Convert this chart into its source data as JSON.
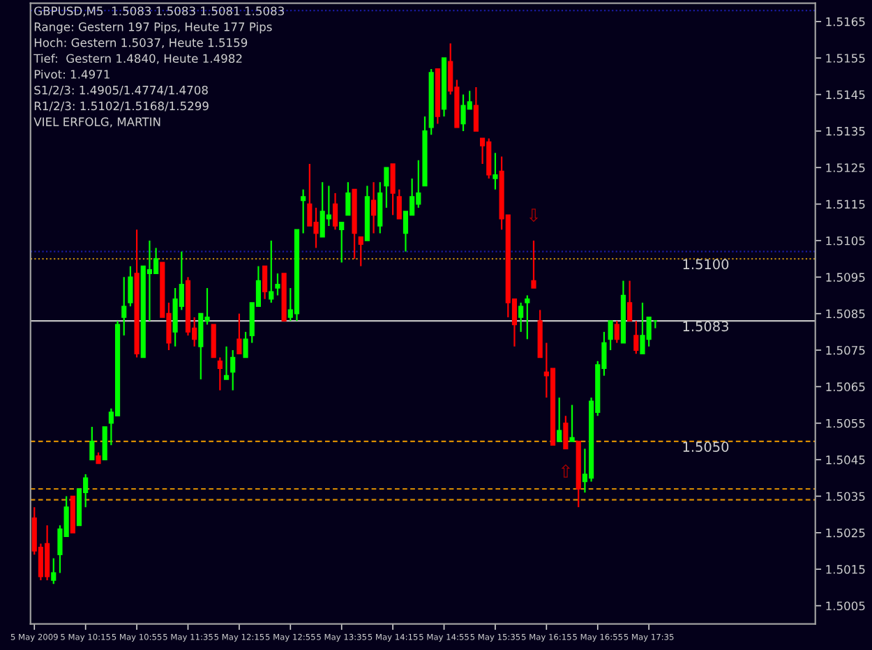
{
  "chart_data": {
    "type": "candlestick",
    "title": "GBPUSD,M5  1.5083 1.5083 1.5081 1.5083",
    "annotations": [
      "Range: Gestern 197 Pips, Heute 177 Pips",
      "Hoch: Gestern 1.5037, Heute 1.5159",
      "Tief:  Gestern 1.4840, Heute 1.4982",
      "Pivot: 1.4971",
      "S1/2/3: 1.4905/1.4774/1.4708",
      "R1/2/3: 1.5102/1.5168/1.5299",
      "VIEL ERFOLG, MARTIN",
      {
        "text": "⇩",
        "x": "2009-05-05T16:05",
        "y": 1.5105
      },
      {
        "text": "⇧",
        "x": "2009-05-05T16:30",
        "y": 1.5048
      }
    ],
    "x": [
      "2009-05-05T09:35",
      "2009-05-05T09:40",
      "2009-05-05T09:45",
      "2009-05-05T09:50",
      "2009-05-05T09:55",
      "2009-05-05T10:00",
      "2009-05-05T10:05",
      "2009-05-05T10:10",
      "2009-05-05T10:15",
      "2009-05-05T10:20",
      "2009-05-05T10:25",
      "2009-05-05T10:30",
      "2009-05-05T10:35",
      "2009-05-05T10:40",
      "2009-05-05T10:45",
      "2009-05-05T10:50",
      "2009-05-05T10:55",
      "2009-05-05T11:00",
      "2009-05-05T11:05",
      "2009-05-05T11:10",
      "2009-05-05T11:15",
      "2009-05-05T11:20",
      "2009-05-05T11:25",
      "2009-05-05T11:30",
      "2009-05-05T11:35",
      "2009-05-05T11:40",
      "2009-05-05T11:45",
      "2009-05-05T11:50",
      "2009-05-05T11:55",
      "2009-05-05T12:00",
      "2009-05-05T12:05",
      "2009-05-05T12:10",
      "2009-05-05T12:15",
      "2009-05-05T12:20",
      "2009-05-05T12:25",
      "2009-05-05T12:30",
      "2009-05-05T12:35",
      "2009-05-05T12:40",
      "2009-05-05T12:45",
      "2009-05-05T12:50",
      "2009-05-05T12:55",
      "2009-05-05T13:00",
      "2009-05-05T13:05",
      "2009-05-05T13:10",
      "2009-05-05T13:15",
      "2009-05-05T13:20",
      "2009-05-05T13:25",
      "2009-05-05T13:30",
      "2009-05-05T13:35",
      "2009-05-05T13:40",
      "2009-05-05T13:45",
      "2009-05-05T13:50",
      "2009-05-05T13:55",
      "2009-05-05T14:00",
      "2009-05-05T14:05",
      "2009-05-05T14:10",
      "2009-05-05T14:15",
      "2009-05-05T14:20",
      "2009-05-05T14:25",
      "2009-05-05T14:30",
      "2009-05-05T14:35",
      "2009-05-05T14:40",
      "2009-05-05T14:45",
      "2009-05-05T14:50",
      "2009-05-05T14:55",
      "2009-05-05T15:00",
      "2009-05-05T15:05",
      "2009-05-05T15:10",
      "2009-05-05T15:15",
      "2009-05-05T15:20",
      "2009-05-05T15:25",
      "2009-05-05T15:30",
      "2009-05-05T15:35",
      "2009-05-05T15:40",
      "2009-05-05T15:45",
      "2009-05-05T15:50",
      "2009-05-05T15:55",
      "2009-05-05T16:00",
      "2009-05-05T16:05",
      "2009-05-05T16:10",
      "2009-05-05T16:15",
      "2009-05-05T16:20",
      "2009-05-05T16:25",
      "2009-05-05T16:30",
      "2009-05-05T16:35",
      "2009-05-05T16:40",
      "2009-05-05T16:45",
      "2009-05-05T16:50",
      "2009-05-05T16:55",
      "2009-05-05T17:00",
      "2009-05-05T17:05",
      "2009-05-05T17:10",
      "2009-05-05T17:15",
      "2009-05-05T17:20",
      "2009-05-05T17:25",
      "2009-05-05T17:30",
      "2009-05-05T17:35",
      "2009-05-05T17:40"
    ],
    "ohlc": [
      [
        1.5029,
        1.5032,
        1.5019,
        1.502
      ],
      [
        1.5021,
        1.5022,
        1.5012,
        1.5013
      ],
      [
        1.5022,
        1.5027,
        1.5012,
        1.5013
      ],
      [
        1.5012,
        1.5018,
        1.5011,
        1.5014
      ],
      [
        1.5019,
        1.5027,
        1.5014,
        1.5026
      ],
      [
        1.5024,
        1.5035,
        1.5024,
        1.5032
      ],
      [
        1.5035,
        1.5035,
        1.5025,
        1.5025
      ],
      [
        1.5027,
        1.5037,
        1.5027,
        1.5037
      ],
      [
        1.5036,
        1.5041,
        1.5032,
        1.504
      ],
      [
        1.5045,
        1.5054,
        1.5045,
        1.505
      ],
      [
        1.5046,
        1.5047,
        1.5044,
        1.5044
      ],
      [
        1.5045,
        1.5054,
        1.5045,
        1.5054
      ],
      [
        1.5055,
        1.5059,
        1.5049,
        1.5058
      ],
      [
        1.5057,
        1.5083,
        1.5057,
        1.5082
      ],
      [
        1.5084,
        1.5095,
        1.5079,
        1.5087
      ],
      [
        1.5088,
        1.5098,
        1.5087,
        1.5095
      ],
      [
        1.5096,
        1.5108,
        1.5073,
        1.5074
      ],
      [
        1.5073,
        1.5098,
        1.5073,
        1.5098
      ],
      [
        1.5096,
        1.5105,
        1.5083,
        1.5097
      ],
      [
        1.5096,
        1.5103,
        1.5096,
        1.51
      ],
      [
        1.5099,
        1.5099,
        1.5084,
        1.5084
      ],
      [
        1.5085,
        1.5088,
        1.5075,
        1.5077
      ],
      [
        1.508,
        1.5092,
        1.5076,
        1.5089
      ],
      [
        1.5087,
        1.5102,
        1.5086,
        1.5093
      ],
      [
        1.5094,
        1.5095,
        1.5079,
        1.508
      ],
      [
        1.5081,
        1.5084,
        1.5076,
        1.5078
      ],
      [
        1.5076,
        1.5085,
        1.5067,
        1.5085
      ],
      [
        1.5083,
        1.5092,
        1.5082,
        1.5084
      ],
      [
        1.5082,
        1.5082,
        1.5073,
        1.5073
      ],
      [
        1.5072,
        1.5073,
        1.5064,
        1.507
      ],
      [
        1.5067,
        1.5076,
        1.5067,
        1.5068
      ],
      [
        1.5069,
        1.5075,
        1.5064,
        1.5073
      ],
      [
        1.5078,
        1.5085,
        1.5074,
        1.5074
      ],
      [
        1.5073,
        1.508,
        1.5073,
        1.5078
      ],
      [
        1.5079,
        1.5088,
        1.5077,
        1.5088
      ],
      [
        1.5087,
        1.5098,
        1.5087,
        1.5094
      ],
      [
        1.5098,
        1.5098,
        1.5089,
        1.5091
      ],
      [
        1.5089,
        1.5105,
        1.5088,
        1.5091
      ],
      [
        1.5092,
        1.5096,
        1.509,
        1.5093
      ],
      [
        1.5096,
        1.5096,
        1.5083,
        1.5083
      ],
      [
        1.5084,
        1.5092,
        1.5083,
        1.5086
      ],
      [
        1.5085,
        1.5108,
        1.5083,
        1.5108
      ],
      [
        1.5116,
        1.5119,
        1.5107,
        1.5117
      ],
      [
        1.5115,
        1.5126,
        1.5109,
        1.5109
      ],
      [
        1.511,
        1.5114,
        1.5103,
        1.5107
      ],
      [
        1.5106,
        1.5121,
        1.5106,
        1.5113
      ],
      [
        1.5111,
        1.512,
        1.5109,
        1.5112
      ],
      [
        1.5115,
        1.5118,
        1.5108,
        1.5109
      ],
      [
        1.5108,
        1.511,
        1.5099,
        1.511
      ],
      [
        1.5112,
        1.5121,
        1.5112,
        1.5118
      ],
      [
        1.5119,
        1.5119,
        1.51,
        1.5107
      ],
      [
        1.5106,
        1.5106,
        1.5098,
        1.5104
      ],
      [
        1.5105,
        1.512,
        1.5105,
        1.5117
      ],
      [
        1.5116,
        1.5121,
        1.5107,
        1.5112
      ],
      [
        1.5109,
        1.5121,
        1.5107,
        1.5118
      ],
      [
        1.512,
        1.5125,
        1.5114,
        1.5125
      ],
      [
        1.5126,
        1.5126,
        1.5112,
        1.5118
      ],
      [
        1.5117,
        1.5119,
        1.5111,
        1.5111
      ],
      [
        1.5107,
        1.5113,
        1.5102,
        1.5113
      ],
      [
        1.5112,
        1.5122,
        1.5112,
        1.5117
      ],
      [
        1.5115,
        1.5127,
        1.5114,
        1.5118
      ],
      [
        1.512,
        1.5139,
        1.512,
        1.5135
      ],
      [
        1.5136,
        1.5152,
        1.5134,
        1.5151
      ],
      [
        1.5152,
        1.5152,
        1.5137,
        1.5139
      ],
      [
        1.5141,
        1.5155,
        1.5139,
        1.5155
      ],
      [
        1.5154,
        1.5159,
        1.5145,
        1.5146
      ],
      [
        1.5147,
        1.5149,
        1.5136,
        1.5136
      ],
      [
        1.5137,
        1.5145,
        1.5135,
        1.5142
      ],
      [
        1.5141,
        1.5146,
        1.5141,
        1.5143
      ],
      [
        1.5142,
        1.5147,
        1.5135,
        1.5135
      ],
      [
        1.5133,
        1.5133,
        1.5126,
        1.5131
      ],
      [
        1.5132,
        1.5133,
        1.5122,
        1.5123
      ],
      [
        1.5122,
        1.5129,
        1.5119,
        1.5123
      ],
      [
        1.5124,
        1.5128,
        1.5108,
        1.5111
      ],
      [
        1.5112,
        1.5112,
        1.5084,
        1.5088
      ],
      [
        1.5089,
        1.5089,
        1.5076,
        1.5082
      ],
      [
        1.5084,
        1.5088,
        1.508,
        1.5087
      ],
      [
        1.5088,
        1.509,
        1.5078,
        1.5089
      ],
      [
        1.5094,
        1.5105,
        1.5092,
        1.5092
      ],
      [
        1.5083,
        1.5086,
        1.5073,
        1.5073
      ],
      [
        1.5069,
        1.5077,
        1.5062,
        1.5068
      ],
      [
        1.507,
        1.507,
        1.5049,
        1.5049
      ],
      [
        1.505,
        1.5062,
        1.505,
        1.5053
      ],
      [
        1.5055,
        1.5057,
        1.5048,
        1.5048
      ],
      [
        1.505,
        1.506,
        1.505,
        1.5051
      ],
      [
        1.505,
        1.505,
        1.5032,
        1.5037
      ],
      [
        1.5039,
        1.5048,
        1.5036,
        1.5041
      ],
      [
        1.504,
        1.5062,
        1.5039,
        1.5061
      ],
      [
        1.5058,
        1.5072,
        1.5057,
        1.5071
      ],
      [
        1.507,
        1.508,
        1.5068,
        1.5077
      ],
      [
        1.5078,
        1.5083,
        1.5075,
        1.5083
      ],
      [
        1.5082,
        1.5083,
        1.5077,
        1.5078
      ],
      [
        1.5077,
        1.5094,
        1.5077,
        1.509
      ],
      [
        1.5088,
        1.5094,
        1.5083,
        1.5083
      ],
      [
        1.5079,
        1.5083,
        1.5074,
        1.5075
      ],
      [
        1.5074,
        1.5088,
        1.5074,
        1.5079
      ],
      [
        1.5078,
        1.5084,
        1.5076,
        1.5084
      ],
      [
        1.5083,
        1.5083,
        1.5081,
        1.5083
      ]
    ],
    "colors": [
      "#ff0000",
      "#ff0000",
      "#ff0000",
      "#00ff00",
      "#00ff00",
      "#00ff00",
      "#ff0000",
      "#00ff00",
      "#00ff00",
      "#00ff00",
      "#ff0000",
      "#00ff00",
      "#00ff00",
      "#00ff00",
      "#00ff00",
      "#00ff00",
      "#ff0000",
      "#00ff00",
      "#00ff00",
      "#00ff00",
      "#ff0000",
      "#ff0000",
      "#00ff00",
      "#00ff00",
      "#ff0000",
      "#ff0000",
      "#00ff00",
      "#00ff00",
      "#ff0000",
      "#ff0000",
      "#00ff00",
      "#00ff00",
      "#ff0000",
      "#00ff00",
      "#00ff00",
      "#00ff00",
      "#ff0000",
      "#00ff00",
      "#00ff00",
      "#ff0000",
      "#00ff00",
      "#00ff00",
      "#00ff00",
      "#ff0000",
      "#ff0000",
      "#00ff00",
      "#00ff00",
      "#ff0000",
      "#00ff00",
      "#00ff00",
      "#ff0000",
      "#ff0000",
      "#00ff00",
      "#ff0000",
      "#00ff00",
      "#00ff00",
      "#ff0000",
      "#ff0000",
      "#00ff00",
      "#00ff00",
      "#00ff00",
      "#00ff00",
      "#00ff00",
      "#ff0000",
      "#00ff00",
      "#ff0000",
      "#ff0000",
      "#00ff00",
      "#00ff00",
      "#ff0000",
      "#ff0000",
      "#ff0000",
      "#00ff00",
      "#ff0000",
      "#ff0000",
      "#ff0000",
      "#00ff00",
      "#00ff00",
      "#ff0000",
      "#ff0000",
      "#ff0000",
      "#ff0000",
      "#00ff00",
      "#ff0000",
      "#00ff00",
      "#ff0000",
      "#00ff00",
      "#00ff00",
      "#00ff00",
      "#00ff00",
      "#00ff00",
      "#ff0000",
      "#00ff00",
      "#ff0000",
      "#ff0000",
      "#00ff00",
      "#00ff00",
      "#00ff00"
    ],
    "xlim": [
      "2009-05-05T09:32",
      "2009-05-05T19:45"
    ],
    "xticks": [
      {
        "value": "2009-05-05T09:35",
        "label": "5 May 2009"
      },
      {
        "value": "2009-05-05T10:15",
        "label": "5 May 10:15"
      },
      {
        "value": "2009-05-05T10:55",
        "label": "5 May 10:55"
      },
      {
        "value": "2009-05-05T11:35",
        "label": "5 May 11:35"
      },
      {
        "value": "2009-05-05T12:15",
        "label": "5 May 12:15"
      },
      {
        "value": "2009-05-05T12:55",
        "label": "5 May 12:55"
      },
      {
        "value": "2009-05-05T13:35",
        "label": "5 May 13:35"
      },
      {
        "value": "2009-05-05T14:15",
        "label": "5 May 14:15"
      },
      {
        "value": "2009-05-05T14:55",
        "label": "5 May 14:55"
      },
      {
        "value": "2009-05-05T15:35",
        "label": "5 May 15:35"
      },
      {
        "value": "2009-05-05T16:15",
        "label": "5 May 16:15"
      },
      {
        "value": "2009-05-05T16:55",
        "label": "5 May 16:55"
      },
      {
        "value": "2009-05-05T17:35",
        "label": "5 May 17:35"
      }
    ],
    "ylim": [
      1.5,
      1.517
    ],
    "yticks": [
      1.5005,
      1.5015,
      1.5025,
      1.5035,
      1.5045,
      1.5055,
      1.5065,
      1.5075,
      1.5085,
      1.5095,
      1.5105,
      1.5115,
      1.5125,
      1.5135,
      1.5145,
      1.5155,
      1.5165
    ],
    "ref_lines": [
      {
        "axis": "y",
        "value": 1.5168,
        "color": "#1a1a9e",
        "line_style": "dotted"
      },
      {
        "axis": "y",
        "value": 1.5102,
        "color": "#1a1a9e",
        "line_style": "dotted"
      },
      {
        "axis": "y",
        "value": 1.51,
        "label": "1.5100",
        "color": "#b8860b",
        "line_style": "dotted"
      },
      {
        "axis": "y",
        "value": 1.5083,
        "label": "1.5083",
        "color": "#c0c0c0",
        "line_style": "solid"
      },
      {
        "axis": "y",
        "value": 1.505,
        "label": "1.5050",
        "color": "#d98c00",
        "line_style": "dashed"
      },
      {
        "axis": "y",
        "value": 1.5037,
        "color": "#d98c00",
        "line_style": "dashed"
      },
      {
        "axis": "y",
        "value": 1.5034,
        "color": "#d98c00",
        "line_style": "dashed"
      }
    ],
    "grid": false
  }
}
